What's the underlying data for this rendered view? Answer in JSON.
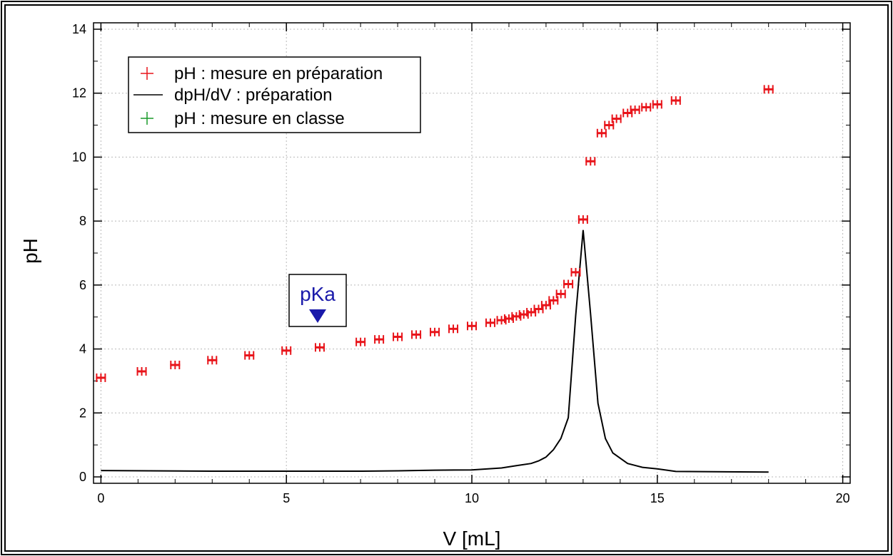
{
  "chart_data": {
    "type": "scatter",
    "xlabel": "V [mL]",
    "ylabel": "pH",
    "xlim": [
      -0.2,
      20.2
    ],
    "ylim": [
      -0.2,
      14.2
    ],
    "x_ticks": [
      "0",
      "5",
      "10",
      "15",
      "20"
    ],
    "y_ticks": [
      "0",
      "2",
      "4",
      "6",
      "8",
      "10",
      "12",
      "14"
    ],
    "grid": true,
    "legend_position": "top-left",
    "legend": [
      {
        "label": "pH : mesure en préparation",
        "marker": "plus",
        "color": "#e8141a"
      },
      {
        "label": "dpH/dV : préparation",
        "marker": "line",
        "color": "#000000"
      },
      {
        "label": "pH : mesure en classe",
        "marker": "plus",
        "color": "#1a9a2a"
      }
    ],
    "annotation": {
      "text": "pKa",
      "x": 5.9,
      "y": 5.0,
      "color": "#1a1aaa"
    },
    "series": [
      {
        "name": "pH : mesure en préparation",
        "style": "markers",
        "color": "#e8141a",
        "x": [
          0,
          1.1,
          2.0,
          3.0,
          4.0,
          5.0,
          5.9,
          7.0,
          7.5,
          8.0,
          8.5,
          9.0,
          9.5,
          10.0,
          10.5,
          10.8,
          11.0,
          11.2,
          11.4,
          11.6,
          11.8,
          12.0,
          12.2,
          12.4,
          12.6,
          12.8,
          13.0,
          13.2,
          13.5,
          13.7,
          13.9,
          14.2,
          14.4,
          14.7,
          15.0,
          15.5,
          18.0
        ],
        "y": [
          3.1,
          3.3,
          3.5,
          3.65,
          3.8,
          3.95,
          4.05,
          4.22,
          4.3,
          4.38,
          4.45,
          4.53,
          4.63,
          4.72,
          4.82,
          4.9,
          4.95,
          5.02,
          5.08,
          5.15,
          5.25,
          5.37,
          5.52,
          5.72,
          6.03,
          6.4,
          8.05,
          9.87,
          10.75,
          11.0,
          11.2,
          11.38,
          11.48,
          11.56,
          11.65,
          11.77,
          12.12
        ]
      },
      {
        "name": "dpH/dV : préparation",
        "style": "line",
        "color": "#000000",
        "x": [
          0,
          3,
          7,
          8,
          9,
          10,
          10.8,
          11.2,
          11.6,
          11.8,
          12.0,
          12.2,
          12.4,
          12.6,
          12.8,
          13.0,
          13.2,
          13.4,
          13.6,
          13.8,
          14.2,
          14.6,
          15.0,
          15.5,
          18.0
        ],
        "y": [
          0.2,
          0.18,
          0.18,
          0.19,
          0.21,
          0.22,
          0.28,
          0.35,
          0.42,
          0.5,
          0.62,
          0.85,
          1.2,
          1.85,
          5.05,
          7.72,
          5.1,
          2.3,
          1.2,
          0.75,
          0.42,
          0.3,
          0.25,
          0.17,
          0.15
        ]
      }
    ]
  }
}
